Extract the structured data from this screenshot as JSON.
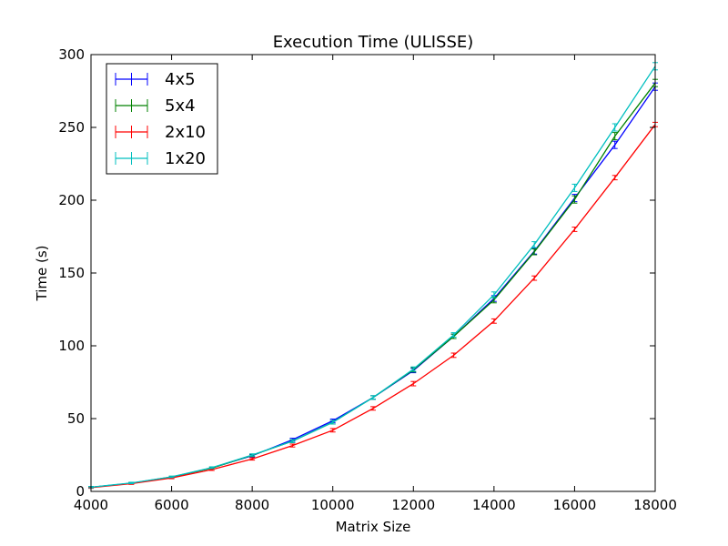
{
  "chart_data": {
    "type": "line",
    "title": "Execution Time (ULISSE)",
    "xlabel": "Matrix Size",
    "ylabel": "Time (s)",
    "xlim": [
      4000,
      18000
    ],
    "ylim": [
      0,
      300
    ],
    "xticks": [
      "4000",
      "6000",
      "8000",
      "10000",
      "12000",
      "14000",
      "16000",
      "18000"
    ],
    "yticks": [
      "0",
      "50",
      "100",
      "150",
      "200",
      "250",
      "300"
    ],
    "grid": false,
    "legend_position": "upper-left",
    "x": [
      4000,
      5000,
      6000,
      7000,
      8000,
      9000,
      10000,
      11000,
      12000,
      13000,
      14000,
      15000,
      16000,
      17000,
      18000
    ],
    "series": [
      {
        "name": "4x5",
        "color": "#0000ff",
        "values": [
          2.8,
          5.6,
          9.8,
          16.2,
          24.5,
          35.5,
          48.5,
          64.5,
          83.0,
          106.5,
          132.5,
          165.0,
          201.5,
          238.0,
          278.0
        ],
        "errors": [
          0.5,
          0.5,
          0.5,
          0.6,
          0.8,
          1.0,
          1.2,
          1.2,
          1.5,
          1.5,
          2.0,
          2.0,
          2.5,
          2.5,
          2.5
        ]
      },
      {
        "name": "5x4",
        "color": "#008000",
        "values": [
          2.8,
          5.6,
          9.9,
          16.0,
          24.8,
          34.5,
          47.5,
          64.5,
          83.5,
          106.5,
          131.5,
          164.5,
          200.5,
          244.0,
          280.5
        ],
        "errors": [
          0.5,
          0.5,
          0.5,
          0.6,
          0.8,
          1.0,
          1.2,
          1.2,
          1.5,
          1.5,
          2.0,
          2.0,
          2.5,
          2.5,
          2.5
        ]
      },
      {
        "name": "2x10",
        "color": "#ff0000",
        "values": [
          2.6,
          5.3,
          9.2,
          15.0,
          22.3,
          31.5,
          42.0,
          57.0,
          74.0,
          93.5,
          117.0,
          146.5,
          180.0,
          215.5,
          252.0
        ],
        "errors": [
          0.5,
          0.5,
          0.5,
          0.6,
          0.8,
          1.0,
          1.2,
          1.2,
          1.5,
          1.5,
          1.5,
          1.5,
          1.5,
          1.5,
          1.5
        ]
      },
      {
        "name": "1x20",
        "color": "#00bfbf",
        "values": [
          2.9,
          5.8,
          10.0,
          16.3,
          25.0,
          34.5,
          47.5,
          64.5,
          84.0,
          107.5,
          135.0,
          169.5,
          208.5,
          250.0,
          292.0
        ],
        "errors": [
          0.5,
          0.5,
          0.5,
          0.6,
          0.8,
          1.0,
          1.2,
          1.2,
          1.5,
          1.5,
          2.0,
          2.0,
          2.5,
          2.5,
          2.5
        ]
      }
    ]
  }
}
